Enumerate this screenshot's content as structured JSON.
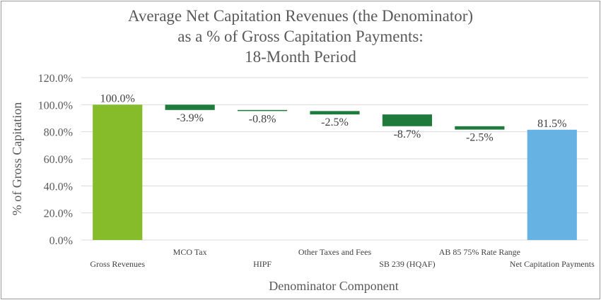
{
  "chart_data": {
    "type": "waterfall",
    "title_lines": [
      "Average Net Capitation Revenues (the Denominator)",
      "as a % of Gross Capitation Payments:",
      "18-Month Period"
    ],
    "xlabel": "Denominator Component",
    "ylabel": "% of Gross Capitation",
    "ylim": [
      0,
      120
    ],
    "yticks": [
      0,
      20,
      40,
      60,
      80,
      100,
      120
    ],
    "ytick_labels": [
      "0.0%",
      "20.0%",
      "40.0%",
      "60.0%",
      "80.0%",
      "100.0%",
      "120.0%"
    ],
    "grid": true,
    "categories": [
      {
        "label": "Gross Revenues",
        "value": 100.0,
        "kind": "total",
        "data_label": "100.0%",
        "color": "#86bb2a",
        "label_row": 1
      },
      {
        "label": "MCO Tax",
        "value": -3.9,
        "kind": "delta",
        "data_label": "-3.9%",
        "color": "#1e7b3c",
        "label_row": 0
      },
      {
        "label": "HIPF",
        "value": -0.8,
        "kind": "delta",
        "data_label": "-0.8%",
        "color": "#1e7b3c",
        "label_row": 1
      },
      {
        "label": "Other Taxes and Fees",
        "value": -2.5,
        "kind": "delta",
        "data_label": "-2.5%",
        "color": "#1e7b3c",
        "label_row": 0
      },
      {
        "label": "SB 239 (HQAF)",
        "value": -8.7,
        "kind": "delta",
        "data_label": "-8.7%",
        "color": "#1e7b3c",
        "label_row": 1
      },
      {
        "label": "AB 85 75% Rate Range",
        "value": -2.5,
        "kind": "delta",
        "data_label": "-2.5%",
        "color": "#1e7b3c",
        "label_row": 0
      },
      {
        "label": "Net Capitation Payments",
        "value": 81.5,
        "kind": "total",
        "data_label": "81.5%",
        "color": "#66b3e3",
        "label_row": 1
      }
    ]
  }
}
